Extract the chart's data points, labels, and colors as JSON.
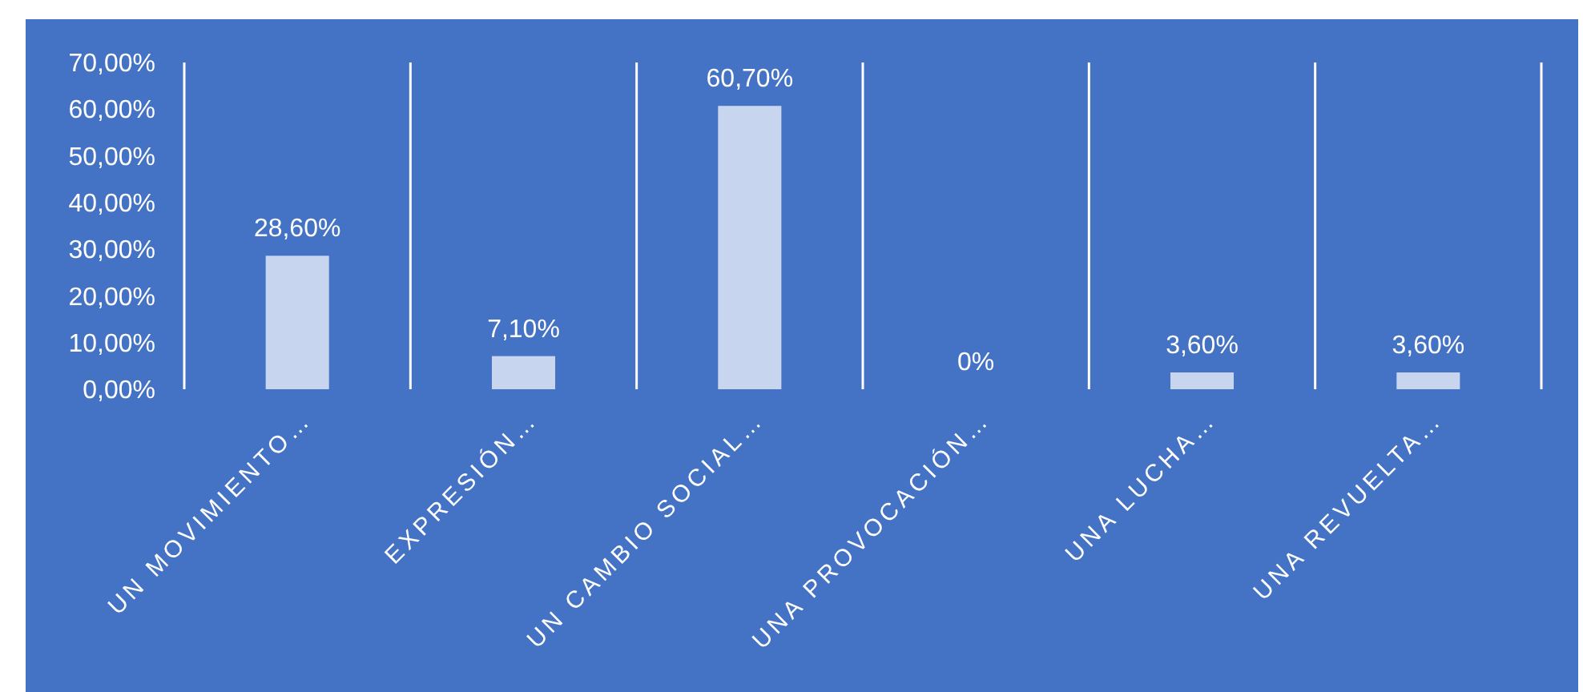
{
  "chart_data": {
    "type": "bar",
    "categories": [
      "UN MOVIMIENTO…",
      "EXPRESIÓN…",
      "UN CAMBIO SOCIAL…",
      "UNA PROVOCACIÓN…",
      "UNA LUCHA…",
      "UNA REVUELTA…"
    ],
    "values": [
      28.6,
      7.1,
      60.7,
      0,
      3.6,
      3.6
    ],
    "value_labels": [
      "28,60%",
      "7,10%",
      "60,70%",
      "0%",
      "3,60%",
      "3,60%"
    ],
    "color": "#c8d5ef",
    "ylim": [
      0,
      70
    ],
    "yticks": [
      {
        "value": 0,
        "label": "0,00%"
      },
      {
        "value": 10,
        "label": "10,00%"
      },
      {
        "value": 20,
        "label": "20,00%"
      },
      {
        "value": 30,
        "label": "30,00%"
      },
      {
        "value": 40,
        "label": "40,00%"
      },
      {
        "value": 50,
        "label": "50,00%"
      },
      {
        "value": 60,
        "label": "60,00%"
      },
      {
        "value": 70,
        "label": "70,00%"
      }
    ],
    "grid": "x"
  }
}
